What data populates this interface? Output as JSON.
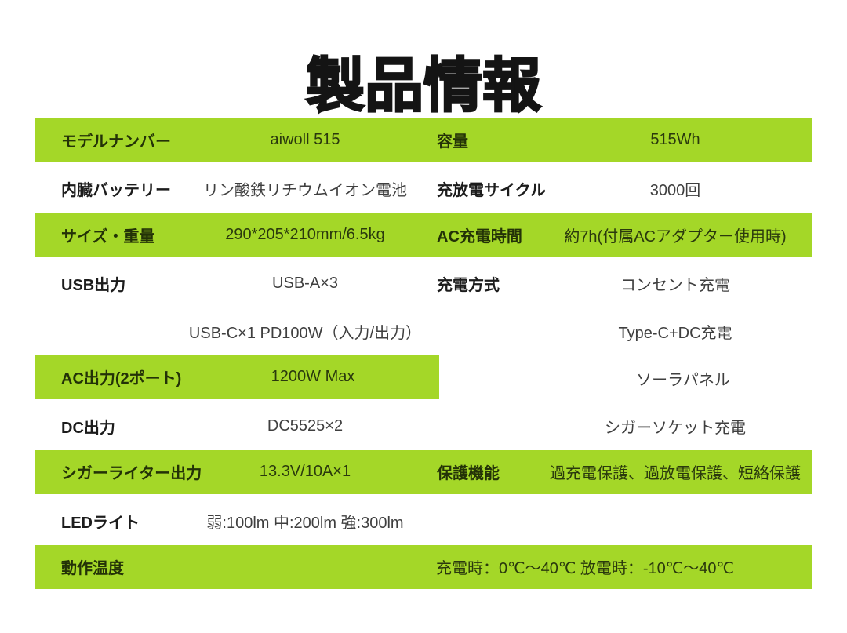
{
  "page": {
    "title": "製品情報"
  },
  "colors": {
    "green": "#a4d728",
    "text_on_green": "#2a390d",
    "label_text": "#1c1c1c",
    "value_text": "#3f3f3f"
  },
  "table": {
    "rows": [
      {
        "left": {
          "label": "モデルナンバー",
          "value": "aiwoll 515"
        },
        "right": {
          "label": "容量",
          "value": "515Wh"
        }
      },
      {
        "left": {
          "label": "内臓バッテリー",
          "value": "リン酸鉄リチウムイオン電池"
        },
        "right": {
          "label": "充放電サイクル",
          "value": "3000回"
        }
      },
      {
        "left": {
          "label": "サイズ・重量",
          "value": "290*205*210mm/6.5kg"
        },
        "right": {
          "label": "AC充電時間",
          "value": "約7h(付属ACアダプター使用時)"
        }
      },
      {
        "left": {
          "label": "USB出力",
          "value": "USB-A×3"
        },
        "right": {
          "label": "充電方式",
          "value": "コンセント充電"
        }
      },
      {
        "left": {
          "label": "",
          "value": "USB-C×1 PD100W（入力/出力）"
        },
        "right": {
          "label": "",
          "value": "Type-C+DC充電"
        }
      },
      {
        "left": {
          "label": "AC出力(2ポート)",
          "value": "1200W Max"
        },
        "right": {
          "label": "",
          "value": "ソーラパネル"
        }
      },
      {
        "left": {
          "label": "DC出力",
          "value": "DC5525×2"
        },
        "right": {
          "label": "",
          "value": "シガーソケット充電"
        }
      },
      {
        "left": {
          "label": "シガーライター出力",
          "value": "13.3V/10A×1"
        },
        "right": {
          "label": "保護機能",
          "value": "過充電保護、過放電保護、短絡保護"
        }
      },
      {
        "left": {
          "label": "LEDライト",
          "value": "弱:100lm 中:200lm 強:300lm"
        },
        "right": {
          "label": "",
          "value": ""
        }
      },
      {
        "left": {
          "label": "動作温度",
          "value": ""
        },
        "right": {
          "label": "",
          "value": "充電時：0℃〜40℃ 放電時：-10℃〜40℃"
        }
      }
    ]
  }
}
